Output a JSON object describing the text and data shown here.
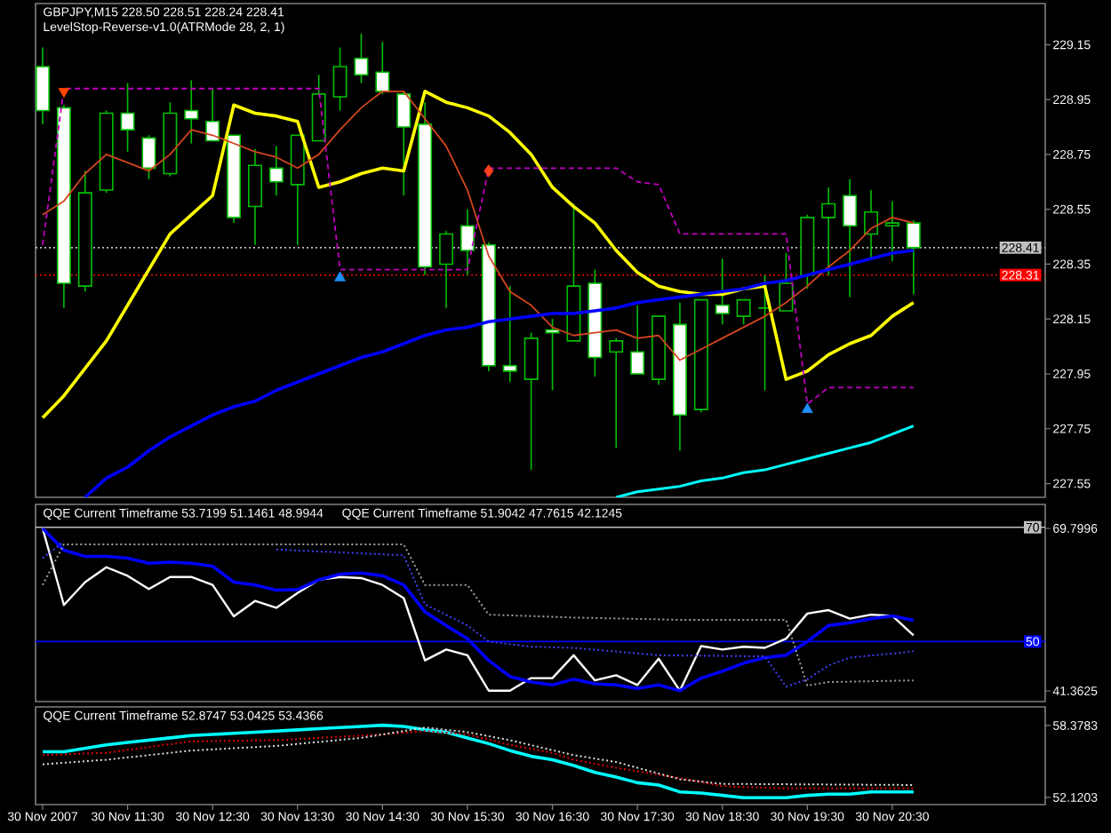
{
  "chart_data": [
    {
      "type": "candlestick",
      "title": "GBPJPY,M15 228.50 228.51 228.24 228.41",
      "subtitle": "LevelStop-Reverse-v1.0(ATRMode 28, 2, 1)",
      "x": [
        "2007-11-30T10:30",
        "2007-11-30T10:45",
        "2007-11-30T11:00",
        "2007-11-30T11:15",
        "2007-11-30T11:30",
        "2007-11-30T11:45",
        "2007-11-30T12:00",
        "2007-11-30T12:15",
        "2007-11-30T12:30",
        "2007-11-30T12:45",
        "2007-11-30T13:00",
        "2007-11-30T13:15",
        "2007-11-30T13:30",
        "2007-11-30T13:45",
        "2007-11-30T14:00",
        "2007-11-30T14:15",
        "2007-11-30T14:30",
        "2007-11-30T14:45",
        "2007-11-30T15:00",
        "2007-11-30T15:15",
        "2007-11-30T15:30",
        "2007-11-30T15:45",
        "2007-11-30T16:00",
        "2007-11-30T16:15",
        "2007-11-30T16:30",
        "2007-11-30T16:45",
        "2007-11-30T17:00",
        "2007-11-30T17:15",
        "2007-11-30T17:30",
        "2007-11-30T17:45",
        "2007-11-30T18:00",
        "2007-11-30T18:15",
        "2007-11-30T18:30",
        "2007-11-30T18:45",
        "2007-11-30T19:00",
        "2007-11-30T19:15",
        "2007-11-30T19:30",
        "2007-11-30T19:45",
        "2007-11-30T20:00",
        "2007-11-30T20:15",
        "2007-11-30T20:30",
        "2007-11-30T20:45"
      ],
      "ohlc": [
        [
          229.07,
          229.14,
          228.86,
          228.91
        ],
        [
          228.92,
          228.93,
          228.19,
          228.28
        ],
        [
          228.27,
          228.69,
          228.25,
          228.61
        ],
        [
          228.62,
          228.91,
          228.61,
          228.9
        ],
        [
          228.9,
          229.01,
          228.76,
          228.84
        ],
        [
          228.81,
          228.82,
          228.66,
          228.7
        ],
        [
          228.68,
          228.94,
          228.67,
          228.9
        ],
        [
          228.91,
          229.02,
          228.79,
          228.88
        ],
        [
          228.87,
          228.99,
          228.8,
          228.8
        ],
        [
          228.82,
          228.82,
          228.5,
          228.52
        ],
        [
          228.56,
          228.77,
          228.42,
          228.71
        ],
        [
          228.7,
          228.78,
          228.6,
          228.65
        ],
        [
          228.64,
          228.82,
          228.42,
          228.82
        ],
        [
          228.8,
          229.04,
          228.8,
          228.97
        ],
        [
          228.96,
          229.14,
          228.91,
          229.07
        ],
        [
          229.1,
          229.19,
          229.01,
          229.04
        ],
        [
          229.05,
          229.16,
          228.97,
          228.98
        ],
        [
          228.97,
          228.98,
          228.6,
          228.85
        ],
        [
          228.86,
          228.94,
          228.31,
          228.34
        ],
        [
          228.35,
          228.47,
          228.19,
          228.46
        ],
        [
          228.49,
          228.55,
          228.31,
          228.4
        ],
        [
          228.42,
          228.43,
          227.96,
          227.98
        ],
        [
          227.98,
          228.27,
          227.92,
          227.96
        ],
        [
          227.93,
          228.1,
          227.6,
          228.08
        ],
        [
          228.11,
          228.15,
          227.89,
          228.1
        ],
        [
          228.07,
          228.57,
          228.07,
          228.27
        ],
        [
          228.28,
          228.33,
          227.94,
          228.01
        ],
        [
          228.03,
          228.08,
          227.68,
          228.07
        ],
        [
          228.03,
          228.2,
          227.95,
          227.95
        ],
        [
          227.93,
          228.16,
          227.91,
          228.16
        ],
        [
          228.13,
          228.21,
          227.67,
          227.8
        ],
        [
          227.82,
          228.22,
          227.81,
          228.22
        ],
        [
          228.2,
          228.37,
          228.13,
          228.17
        ],
        [
          228.16,
          228.22,
          228.13,
          228.22
        ],
        [
          228.19,
          228.31,
          227.89,
          228.19
        ],
        [
          228.18,
          228.39,
          228.18,
          228.28
        ],
        [
          228.31,
          228.53,
          228.26,
          228.52
        ],
        [
          228.52,
          228.63,
          228.31,
          228.57
        ],
        [
          228.6,
          228.66,
          228.23,
          228.49
        ],
        [
          228.46,
          228.62,
          228.37,
          228.54
        ],
        [
          228.49,
          228.58,
          228.36,
          228.5
        ],
        [
          228.5,
          228.51,
          228.24,
          228.41
        ]
      ],
      "colors": [
        "#ffffff",
        "#ffffff",
        "#000000",
        "#000000",
        "#ffffff",
        "#ffffff",
        "#000000",
        "#ffffff",
        "#ffffff",
        "#ffffff",
        "#000000",
        "#ffffff",
        "#000000",
        "#000000",
        "#000000",
        "#ffffff",
        "#ffffff",
        "#ffffff",
        "#ffffff",
        "#000000",
        "#ffffff",
        "#ffffff",
        "#ffffff",
        "#000000",
        "#ffffff",
        "#000000",
        "#ffffff",
        "#000000",
        "#ffffff",
        "#000000",
        "#ffffff",
        "#000000",
        "#ffffff",
        "#000000",
        "#00c000",
        "#000000",
        "#000000",
        "#000000",
        "#ffffff",
        "#000000",
        "#000000",
        "#ffffff"
      ],
      "color": "#00c000",
      "series": [
        {
          "type": "line",
          "color": "#ffff00",
          "values": [
            227.79,
            227.87,
            227.97,
            228.07,
            228.2,
            228.33,
            228.46,
            228.53,
            228.6,
            228.93,
            228.9,
            228.89,
            228.87,
            228.63,
            228.65,
            228.68,
            228.7,
            228.69,
            228.98,
            228.94,
            228.92,
            228.89,
            228.83,
            228.75,
            228.63,
            228.56,
            228.5,
            228.4,
            228.32,
            228.27,
            228.25,
            228.24,
            228.24,
            228.26,
            228.27,
            227.93,
            227.96,
            228.02,
            228.06,
            228.09,
            228.16,
            228.21
          ]
        },
        {
          "type": "line",
          "color": "#d2451e",
          "values": [
            228.53,
            228.58,
            228.68,
            228.75,
            228.72,
            228.69,
            228.75,
            228.84,
            228.82,
            228.79,
            228.76,
            228.74,
            228.7,
            228.75,
            228.84,
            228.92,
            228.98,
            228.98,
            228.88,
            228.78,
            228.62,
            228.38,
            228.25,
            228.2,
            228.12,
            228.09,
            228.1,
            228.11,
            228.08,
            228.09,
            228.0,
            228.04,
            228.08,
            228.12,
            228.16,
            228.21,
            228.27,
            228.34,
            228.4,
            228.48,
            228.52,
            228.5
          ]
        },
        {
          "type": "line",
          "color": "#0000ff",
          "values": [
            null,
            null,
            227.5,
            227.57,
            227.61,
            227.67,
            227.72,
            227.76,
            227.8,
            227.83,
            227.85,
            227.89,
            227.92,
            227.95,
            227.98,
            228.01,
            228.03,
            228.06,
            228.09,
            228.11,
            228.12,
            228.14,
            228.15,
            228.16,
            228.17,
            228.17,
            228.18,
            228.19,
            228.21,
            228.22,
            228.23,
            228.24,
            228.25,
            228.26,
            228.28,
            228.29,
            228.31,
            228.33,
            228.35,
            228.37,
            228.39,
            228.4
          ]
        },
        {
          "type": "line",
          "color": "#00ffff",
          "x": [
            "2007-11-30T17:15",
            "2007-11-30T17:30",
            "2007-11-30T17:45",
            "2007-11-30T18:00",
            "2007-11-30T18:15",
            "2007-11-30T18:30",
            "2007-11-30T18:45",
            "2007-11-30T19:00",
            "2007-11-30T19:15",
            "2007-11-30T19:30",
            "2007-11-30T19:45",
            "2007-11-30T20:00",
            "2007-11-30T20:15",
            "2007-11-30T20:30",
            "2007-11-30T20:45"
          ],
          "values": [
            227.5,
            227.52,
            227.53,
            227.54,
            227.56,
            227.57,
            227.59,
            227.6,
            227.62,
            227.64,
            227.66,
            227.68,
            227.7,
            227.73,
            227.76
          ]
        },
        {
          "type": "line",
          "color": "#c000c0",
          "line_style": "dashed",
          "x": [
            "2007-11-30T10:30",
            "2007-11-30T10:45",
            "2007-11-30T13:45",
            "2007-11-30T14:00",
            "2007-11-30T15:30",
            "2007-11-30T15:45",
            "2007-11-30T17:15",
            "2007-11-30T17:30",
            "2007-11-30T17:45",
            "2007-11-30T18:00",
            "2007-11-30T19:15",
            "2007-11-30T19:30",
            "2007-11-30T19:45",
            "2007-11-30T20:45"
          ],
          "values": [
            228.42,
            228.99,
            228.99,
            228.33,
            228.33,
            228.7,
            228.7,
            228.65,
            228.64,
            228.46,
            228.46,
            227.84,
            227.9,
            227.9
          ]
        },
        {
          "type": "scatter",
          "color": "#ff4500",
          "marker": "triangle",
          "x": [
            "2007-11-30T10:45"
          ],
          "values": [
            228.98
          ]
        },
        {
          "type": "scatter",
          "color": "#1e90ff",
          "marker": "triangle",
          "x": [
            "2007-11-30T14:00",
            "2007-11-30T19:30"
          ],
          "values": [
            228.3,
            227.82
          ]
        },
        {
          "type": "scatter",
          "color": "#ff4020",
          "marker": "diamond",
          "x": [
            "2007-11-30T15:45"
          ],
          "values": [
            228.69
          ]
        }
      ],
      "ref_lines": [
        {
          "axis": "y",
          "value": 228.41,
          "label": "228.41",
          "color": "#c0c0c0",
          "line_style": "dotted"
        },
        {
          "axis": "y",
          "value": 228.31,
          "label": "228.31",
          "color": "#ff0000",
          "line_style": "dotted"
        }
      ],
      "xlim": [
        "2007-11-30T10:25",
        "2007-11-30T22:18"
      ],
      "ylim": [
        227.5,
        229.3
      ],
      "yticks": [
        227.55,
        227.75,
        227.95,
        228.15,
        228.35,
        228.55,
        228.75,
        228.95,
        229.15
      ],
      "tick_labels": "y"
    },
    {
      "type": "line",
      "title": "QQE Current Timeframe 53.7199 51.1461 48.9944",
      "subtitle": "QQE Current Timeframe 51.9042 47.7615 42.1245",
      "x": [
        "2007-11-30T10:30",
        "2007-11-30T10:45",
        "2007-11-30T11:00",
        "2007-11-30T11:15",
        "2007-11-30T11:30",
        "2007-11-30T11:45",
        "2007-11-30T12:00",
        "2007-11-30T12:15",
        "2007-11-30T12:30",
        "2007-11-30T12:45",
        "2007-11-30T13:00",
        "2007-11-30T13:15",
        "2007-11-30T13:30",
        "2007-11-30T13:45",
        "2007-11-30T14:00",
        "2007-11-30T14:15",
        "2007-11-30T14:30",
        "2007-11-30T14:45",
        "2007-11-30T15:00",
        "2007-11-30T15:15",
        "2007-11-30T15:30",
        "2007-11-30T15:45",
        "2007-11-30T16:00",
        "2007-11-30T16:15",
        "2007-11-30T16:30",
        "2007-11-30T16:45",
        "2007-11-30T17:00",
        "2007-11-30T17:15",
        "2007-11-30T17:30",
        "2007-11-30T17:45",
        "2007-11-30T18:00",
        "2007-11-30T18:15",
        "2007-11-30T18:30",
        "2007-11-30T18:45",
        "2007-11-30T19:00",
        "2007-11-30T19:15",
        "2007-11-30T19:30",
        "2007-11-30T19:45",
        "2007-11-30T20:00",
        "2007-11-30T20:15",
        "2007-11-30T20:30",
        "2007-11-30T20:45"
      ],
      "series": [
        {
          "type": "line",
          "color": "#ffffff",
          "values": [
            69.8,
            56.4,
            60.4,
            63.0,
            61.5,
            59.2,
            61.3,
            61.3,
            59.9,
            54.4,
            57.1,
            55.9,
            58.5,
            60.8,
            61.3,
            61.1,
            59.9,
            57.6,
            46.7,
            48.6,
            47.6,
            41.4,
            41.4,
            43.6,
            43.6,
            47.6,
            43.2,
            44.1,
            42.4,
            47.0,
            41.4,
            49.2,
            48.6,
            49.1,
            48.9,
            50.5,
            54.9,
            55.5,
            54.0,
            54.7,
            54.5,
            51.1
          ]
        },
        {
          "type": "line",
          "color": "#0000ff",
          "values": [
            69.8,
            66.0,
            64.9,
            64.9,
            64.6,
            63.7,
            63.9,
            63.7,
            63.2,
            60.4,
            59.9,
            59.0,
            59.1,
            60.8,
            61.8,
            62.0,
            61.5,
            59.9,
            55.2,
            52.8,
            50.5,
            46.7,
            43.9,
            42.9,
            42.4,
            43.4,
            42.6,
            42.4,
            41.8,
            42.4,
            41.4,
            43.6,
            44.8,
            46.2,
            47.2,
            47.6,
            50.0,
            52.8,
            53.3,
            54.0,
            54.5,
            53.7
          ]
        },
        {
          "type": "line",
          "color": "#4040ff",
          "line_style": "dotted",
          "x": [
            "2007-11-30T10:30",
            "2007-11-30T10:45",
            "2007-11-30T11:00",
            "2007-11-30T13:15",
            "2007-11-30T14:45",
            "2007-11-30T15:00",
            "2007-11-30T15:30",
            "2007-11-30T15:45",
            "2007-11-30T16:15",
            "2007-11-30T16:45",
            "2007-11-30T17:45",
            "2007-11-30T19:00",
            "2007-11-30T19:15",
            "2007-11-30T19:30",
            "2007-11-30T19:45",
            "2007-11-30T20:00",
            "2007-11-30T20:30",
            "2007-11-30T20:45"
          ],
          "values": [
            64.6,
            67.5,
            null,
            66.1,
            65.1,
            56.5,
            52.8,
            50.0,
            49.1,
            48.9,
            47.6,
            47.4,
            42.1,
            43.4,
            45.8,
            47.2,
            47.9,
            48.3
          ]
        },
        {
          "type": "line",
          "color": "#a0a0a0",
          "line_style": "dotted",
          "x": [
            "2007-11-30T10:30",
            "2007-11-30T10:45",
            "2007-11-30T14:45",
            "2007-11-30T15:00",
            "2007-11-30T15:30",
            "2007-11-30T15:45",
            "2007-11-30T16:45",
            "2007-11-30T18:00",
            "2007-11-30T19:15",
            "2007-11-30T19:30",
            "2007-11-30T19:45",
            "2007-11-30T20:45"
          ],
          "values": [
            59.9,
            67.0,
            67.0,
            59.9,
            59.9,
            54.7,
            54.2,
            53.8,
            53.8,
            42.3,
            42.9,
            43.2
          ]
        }
      ],
      "ref_lines": [
        {
          "axis": "y",
          "value": 70,
          "label": "70",
          "color": "#c0c0c0",
          "line_style": "solid"
        },
        {
          "axis": "y",
          "value": 50,
          "label": "50",
          "color": "#0000ff",
          "line_style": "solid"
        }
      ],
      "xlim": [
        "2007-11-30T10:25",
        "2007-11-30T22:18"
      ],
      "ylim": [
        39.5,
        74
      ],
      "yticks": [
        41.3625,
        69.7996
      ],
      "tick_labels": "y"
    },
    {
      "type": "line",
      "title": "QQE Current Timeframe 52.8747 53.0425 53.4366",
      "x": [
        "2007-11-30T10:30",
        "2007-11-30T10:45",
        "2007-11-30T11:00",
        "2007-11-30T11:15",
        "2007-11-30T11:30",
        "2007-11-30T11:45",
        "2007-11-30T12:00",
        "2007-11-30T12:15",
        "2007-11-30T12:30",
        "2007-11-30T12:45",
        "2007-11-30T13:00",
        "2007-11-30T13:15",
        "2007-11-30T13:30",
        "2007-11-30T13:45",
        "2007-11-30T14:00",
        "2007-11-30T14:15",
        "2007-11-30T14:30",
        "2007-11-30T14:45",
        "2007-11-30T15:00",
        "2007-11-30T15:15",
        "2007-11-30T15:30",
        "2007-11-30T15:45",
        "2007-11-30T16:00",
        "2007-11-30T16:15",
        "2007-11-30T16:30",
        "2007-11-30T16:45",
        "2007-11-30T17:00",
        "2007-11-30T17:15",
        "2007-11-30T17:30",
        "2007-11-30T17:45",
        "2007-11-30T18:00",
        "2007-11-30T18:15",
        "2007-11-30T18:30",
        "2007-11-30T18:45",
        "2007-11-30T19:00",
        "2007-11-30T19:15",
        "2007-11-30T19:30",
        "2007-11-30T19:45",
        "2007-11-30T20:00",
        "2007-11-30T20:15",
        "2007-11-30T20:30",
        "2007-11-30T20:45"
      ],
      "series": [
        {
          "type": "line",
          "color": "#00ffff",
          "values": [
            56.1,
            56.1,
            56.4,
            56.7,
            56.9,
            57.1,
            57.3,
            57.5,
            57.6,
            57.7,
            57.8,
            57.9,
            58.0,
            58.1,
            58.2,
            58.3,
            58.4,
            58.3,
            58.0,
            57.8,
            57.3,
            56.8,
            56.2,
            55.7,
            55.4,
            54.9,
            54.3,
            53.9,
            53.4,
            53.2,
            52.6,
            52.5,
            52.3,
            52.1,
            52.1,
            52.1,
            52.3,
            52.4,
            52.4,
            52.6,
            52.6,
            52.6
          ]
        },
        {
          "type": "line",
          "color": "#e00000",
          "line_style": "dotted",
          "x": [
            "2007-11-30T10:30",
            "2007-11-30T11:15",
            "2007-11-30T12:15",
            "2007-11-30T13:15",
            "2007-11-30T14:30",
            "2007-11-30T15:00",
            "2007-11-30T15:30",
            "2007-11-30T16:00",
            "2007-11-30T16:30",
            "2007-11-30T16:45",
            "2007-11-30T17:15",
            "2007-11-30T18:00",
            "2007-11-30T18:30",
            "2007-11-30T19:15",
            "2007-11-30T20:45"
          ],
          "values": [
            55.8,
            56.0,
            57.0,
            57.1,
            57.6,
            57.9,
            57.6,
            56.7,
            56.0,
            55.4,
            54.7,
            53.8,
            53.1,
            52.9,
            52.9
          ]
        },
        {
          "type": "line",
          "color": "#e0e0e0",
          "line_style": "dotted",
          "x": [
            "2007-11-30T10:30",
            "2007-11-30T11:15",
            "2007-11-30T12:15",
            "2007-11-30T13:15",
            "2007-11-30T14:15",
            "2007-11-30T15:00",
            "2007-11-30T15:30",
            "2007-11-30T16:00",
            "2007-11-30T16:45",
            "2007-11-30T17:15",
            "2007-11-30T18:00",
            "2007-11-30T18:30",
            "2007-11-30T20:45"
          ],
          "values": [
            55.0,
            55.4,
            56.2,
            56.6,
            57.3,
            58.2,
            57.8,
            57.1,
            55.8,
            55.2,
            53.7,
            53.3,
            53.2
          ]
        }
      ],
      "xlim": [
        "2007-11-30T10:25",
        "2007-11-30T22:18"
      ],
      "ylim": [
        51.5,
        60
      ],
      "yticks": [
        52.1203,
        58.3783
      ],
      "xticks": [
        {
          "value": "2007-11-30T10:30",
          "label": "30 Nov 2007"
        },
        {
          "value": "2007-11-30T11:30",
          "label": "30 Nov 11:30"
        },
        {
          "value": "2007-11-30T12:30",
          "label": "30 Nov 12:30"
        },
        {
          "value": "2007-11-30T13:30",
          "label": "30 Nov 13:30"
        },
        {
          "value": "2007-11-30T14:30",
          "label": "30 Nov 14:30"
        },
        {
          "value": "2007-11-30T15:30",
          "label": "30 Nov 15:30"
        },
        {
          "value": "2007-11-30T16:30",
          "label": "30 Nov 16:30"
        },
        {
          "value": "2007-11-30T17:30",
          "label": "30 Nov 17:30"
        },
        {
          "value": "2007-11-30T18:30",
          "label": "30 Nov 18:30"
        },
        {
          "value": "2007-11-30T19:30",
          "label": "30 Nov 19:30"
        },
        {
          "value": "2007-11-30T20:30",
          "label": "30 Nov 20:30"
        }
      ]
    }
  ]
}
